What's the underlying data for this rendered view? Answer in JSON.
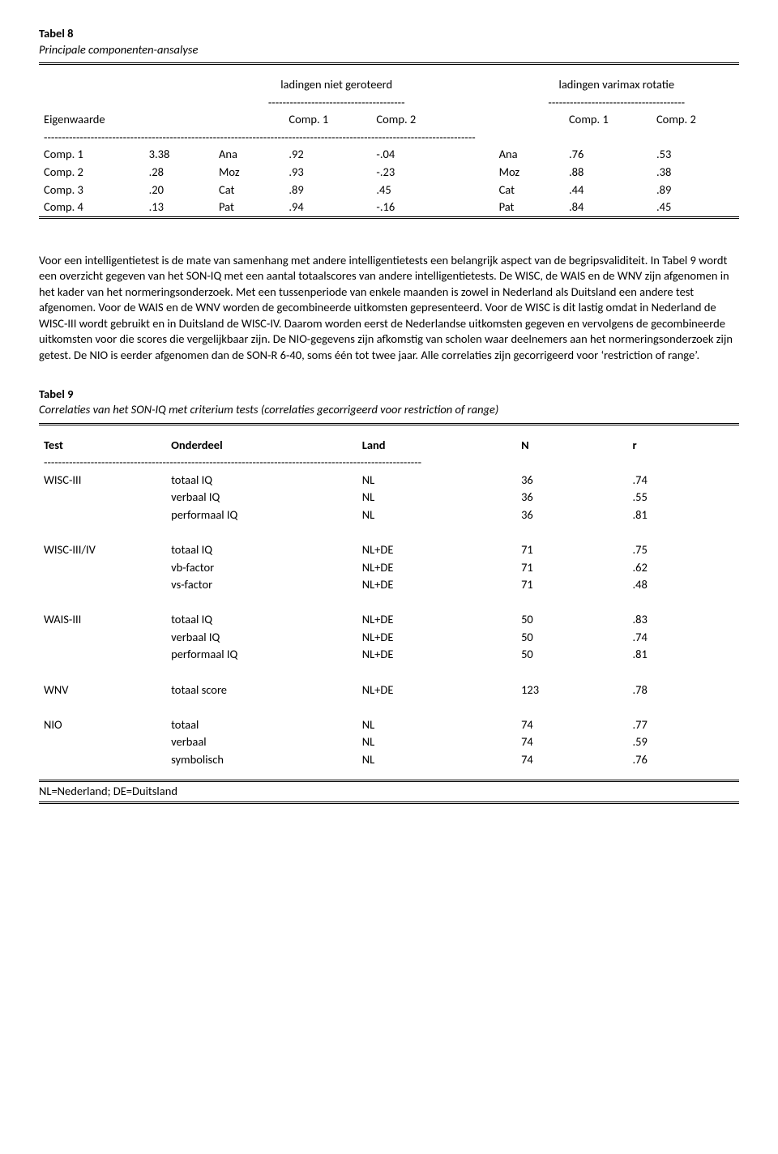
{
  "table8": {
    "title": "Tabel 8",
    "subtitle": "Principale componenten-ansalyse",
    "col_group1": "ladingen niet geroteerd",
    "col_group2": "ladingen varimax rotatie",
    "dashes_sub": "--------------------------------------",
    "row_label": "Eigenwaarde",
    "c1": "Comp. 1",
    "c2": "Comp. 2",
    "dash_full": "------------------------------------------------------------------------------------------------------------------------",
    "rows": [
      {
        "label": "Comp. 1",
        "eig": "3.38",
        "v1": "Ana",
        "a": ".92",
        "b": "-.04",
        "v2": "Ana",
        "c": ".76",
        "d": ".53"
      },
      {
        "label": "Comp. 2",
        "eig": ".28",
        "v1": "Moz",
        "a": ".93",
        "b": "-.23",
        "v2": "Moz",
        "c": ".88",
        "d": ".38"
      },
      {
        "label": "Comp. 3",
        "eig": ".20",
        "v1": "Cat",
        "a": ".89",
        "b": ".45",
        "v2": "Cat",
        "c": ".44",
        "d": ".89"
      },
      {
        "label": "Comp. 4",
        "eig": ".13",
        "v1": "Pat",
        "a": ".94",
        "b": "-.16",
        "v2": "Pat",
        "c": ".84",
        "d": ".45"
      }
    ]
  },
  "paragraph": "Voor een intelligentietest is de mate van samenhang met andere intelligentietests een belangrijk aspect van de begripsvaliditeit. In Tabel 9 wordt een overzicht gegeven van het SON-IQ met een aantal totaalscores van andere intelligentietests. De WISC, de WAIS en de WNV zijn afgenomen in het kader van het normeringsonderzoek. Met een tussenperiode van enkele maanden is zowel in Nederland als Duitsland een andere test afgenomen. Voor de WAIS en de WNV worden de gecombineerde uitkomsten gepresenteerd. Voor de WISC is dit lastig omdat in Nederland de WISC-III wordt gebruikt en in Duitsland de WISC-IV. Daarom worden eerst de Nederlandse uitkomsten gegeven en vervolgens de gecombineerde uitkomsten voor die scores die vergelijkbaar zijn. De NIO-gegevens zijn afkomstig van scholen waar deelnemers aan het normeringsonderzoek zijn getest. De NIO is eerder afgenomen dan de SON-R 6-40, soms één tot twee jaar. Alle correlaties zijn gecorrigeerd voor ‘restriction of range’.",
  "table9": {
    "title": "Tabel 9",
    "subtitle": "Correlaties van het SON-IQ met criterium tests (correlaties gecorrigeerd voor restriction of range)",
    "h_test": "Test",
    "h_onderdeel": "Onderdeel",
    "h_land": "Land",
    "h_n": "N",
    "h_r": "r",
    "dash": "---------------------------------------------------------------------------------------------------------",
    "groups": [
      {
        "test": "WISC-III",
        "rows": [
          {
            "o": "totaal IQ",
            "l": "NL",
            "n": "36",
            "r": ".74"
          },
          {
            "o": "verbaal IQ",
            "l": "NL",
            "n": "36",
            "r": ".55"
          },
          {
            "o": "performaal IQ",
            "l": "NL",
            "n": "36",
            "r": ".81"
          }
        ]
      },
      {
        "test": "WISC-III/IV",
        "rows": [
          {
            "o": "totaal IQ",
            "l": "NL+DE",
            "n": "71",
            "r": ".75"
          },
          {
            "o": "vb-factor",
            "l": "NL+DE",
            "n": "71",
            "r": ".62"
          },
          {
            "o": "vs-factor",
            "l": "NL+DE",
            "n": "71",
            "r": ".48"
          }
        ]
      },
      {
        "test": "WAIS-III",
        "rows": [
          {
            "o": "totaal IQ",
            "l": "NL+DE",
            "n": "50",
            "r": ".83"
          },
          {
            "o": "verbaal IQ",
            "l": "NL+DE",
            "n": "50",
            "r": ".74"
          },
          {
            "o": "performaal IQ",
            "l": "NL+DE",
            "n": "50",
            "r": ".81"
          }
        ]
      },
      {
        "test": "WNV",
        "rows": [
          {
            "o": "totaal score",
            "l": "NL+DE",
            "n": "123",
            "r": ".78"
          }
        ]
      },
      {
        "test": "NIO",
        "rows": [
          {
            "o": "totaal",
            "l": "NL",
            "n": "74",
            "r": ".77"
          },
          {
            "o": "verbaal",
            "l": "NL",
            "n": "74",
            "r": ".59"
          },
          {
            "o": "symbolisch",
            "l": "NL",
            "n": "74",
            "r": ".76"
          }
        ]
      }
    ],
    "footnote": "NL=Nederland; DE=Duitsland"
  }
}
